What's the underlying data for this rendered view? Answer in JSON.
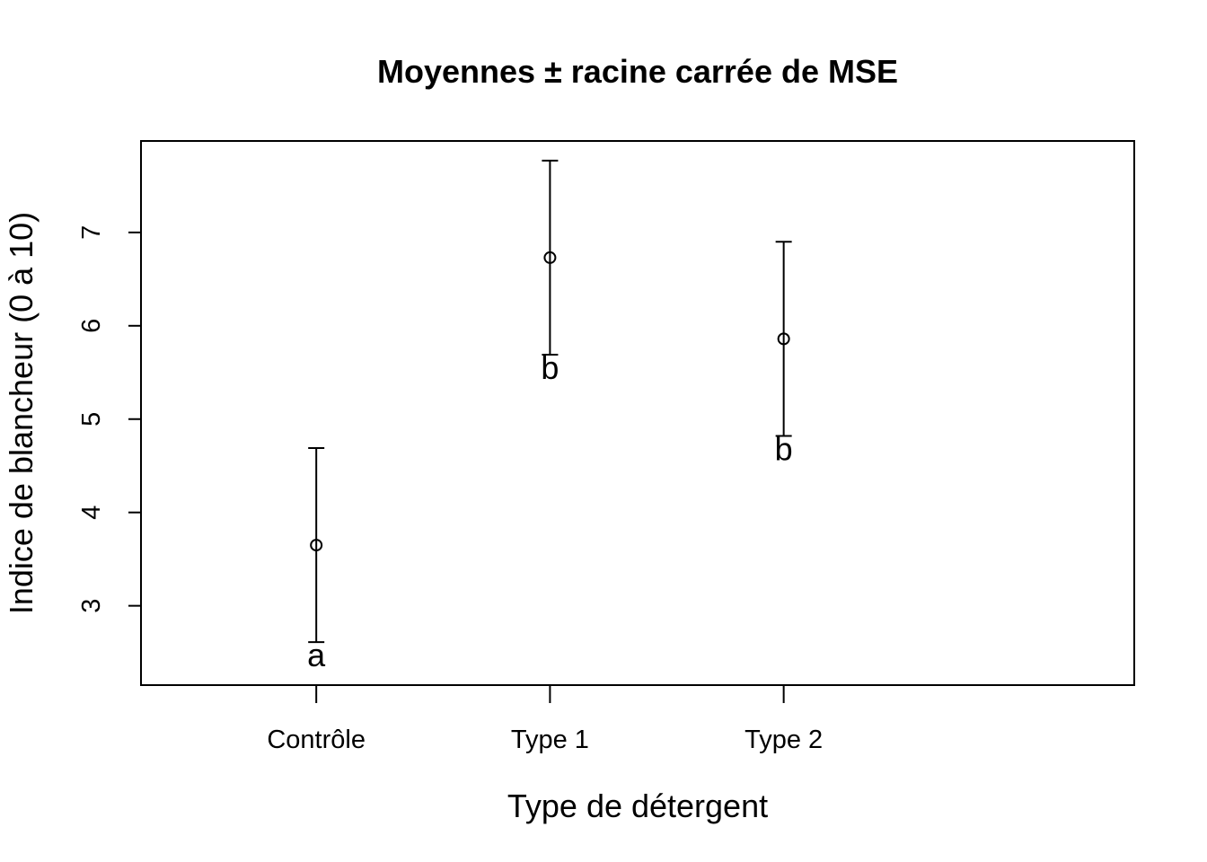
{
  "chart_data": {
    "type": "scatter",
    "title": "Moyennes ± racine carrée de MSE",
    "xlabel": "Type de détergent",
    "ylabel": "Indice de blancheur (0 à 10)",
    "categories": [
      "Contrôle",
      "Type 1",
      "Type 2"
    ],
    "means": [
      3.65,
      6.73,
      5.86
    ],
    "lower": [
      2.61,
      5.69,
      4.82
    ],
    "upper": [
      4.69,
      7.77,
      6.9
    ],
    "group_letters": [
      "a",
      "b",
      "b"
    ],
    "yticks": [
      3,
      4,
      5,
      6,
      7
    ],
    "xlim": [
      0.25,
      4.5
    ],
    "ylim": [
      2.15,
      7.98
    ],
    "grid": false,
    "legend": "none"
  }
}
